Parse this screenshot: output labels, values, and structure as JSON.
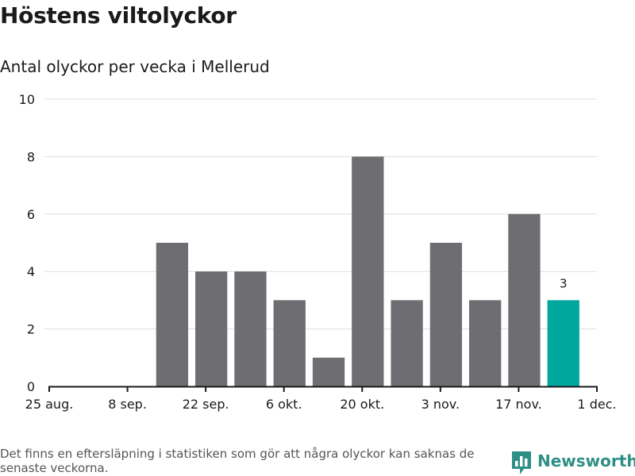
{
  "chart_data": {
    "type": "bar",
    "title": "Höstens viltolyckor",
    "subtitle": "Antal olyckor per vecka i Mellerud",
    "x_axis": {
      "range": [
        "2024-08-25",
        "2024-12-01"
      ],
      "ticks": [
        {
          "date": "2024-08-25",
          "label": "25 aug."
        },
        {
          "date": "2024-09-08",
          "label": "8 sep."
        },
        {
          "date": "2024-09-22",
          "label": "22 sep."
        },
        {
          "date": "2024-10-06",
          "label": "6 okt."
        },
        {
          "date": "2024-10-20",
          "label": "20 okt."
        },
        {
          "date": "2024-11-03",
          "label": "3 nov."
        },
        {
          "date": "2024-11-17",
          "label": "17 nov."
        },
        {
          "date": "2024-12-01",
          "label": "1 dec."
        }
      ]
    },
    "ylim": [
      0,
      10
    ],
    "yticks": [
      0,
      2,
      4,
      6,
      8,
      10
    ],
    "grid": true,
    "bars": [
      {
        "week_start": "2024-09-16",
        "value": 5
      },
      {
        "week_start": "2024-09-23",
        "value": 4
      },
      {
        "week_start": "2024-09-30",
        "value": 4
      },
      {
        "week_start": "2024-10-07",
        "value": 3
      },
      {
        "week_start": "2024-10-14",
        "value": 1
      },
      {
        "week_start": "2024-10-21",
        "value": 8
      },
      {
        "week_start": "2024-10-28",
        "value": 3
      },
      {
        "week_start": "2024-11-04",
        "value": 5
      },
      {
        "week_start": "2024-11-11",
        "value": 3
      },
      {
        "week_start": "2024-11-18",
        "value": 6
      },
      {
        "week_start": "2024-11-25",
        "value": 3,
        "highlight": true,
        "label": "3"
      }
    ],
    "colors": {
      "bar": "#6e6d72",
      "highlight": "#00a79d",
      "grid": "#dddddd",
      "axis": "#1a1a1a"
    }
  },
  "footnote": "Det finns en eftersläpning i statistiken som gör att några olyckor kan saknas de senaste veckorna.",
  "logo": {
    "icon": "newsworthy-chart-icon",
    "text": "Newsworthy",
    "color": "#2f8f86"
  }
}
